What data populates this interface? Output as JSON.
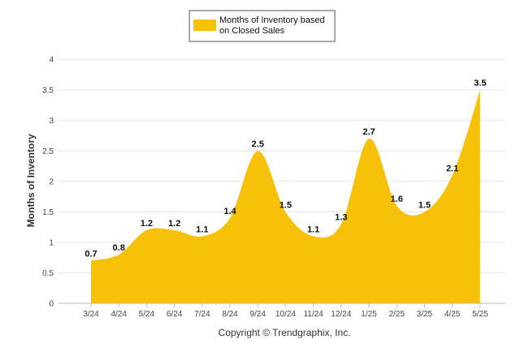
{
  "chart_data": {
    "type": "area",
    "categories": [
      "3/24",
      "4/24",
      "5/24",
      "6/24",
      "7/24",
      "8/24",
      "9/24",
      "10/24",
      "11/24",
      "12/24",
      "1/25",
      "2/25",
      "3/25",
      "4/25",
      "5/25"
    ],
    "series": [
      {
        "name": "Months of Inventory based on Closed Sales",
        "values": [
          0.7,
          0.8,
          1.2,
          1.2,
          1.1,
          1.4,
          2.5,
          1.5,
          1.1,
          1.3,
          2.7,
          1.6,
          1.5,
          2.1,
          3.5
        ],
        "data_labels": [
          "0.7",
          "0.8",
          "1.2",
          "1.2",
          "1.1",
          "1.4",
          "2.5",
          "1.5",
          "1.1",
          "1.3",
          "2.7",
          "1.6",
          "1.5",
          "2.1",
          "3.5"
        ]
      }
    ],
    "legend": {
      "line1": "Months of Inventory based",
      "line2": "on Closed Sales",
      "placement": "top-center"
    },
    "ylabel": "Months of Inventory",
    "xlabel": "",
    "ylim": [
      0,
      4
    ],
    "yticks": [
      "0",
      "0.5",
      "1",
      "1.5",
      "2",
      "2.5",
      "3",
      "3.5",
      "4"
    ],
    "grid": true,
    "colors": {
      "fill": "#F7C10A",
      "grid": "#E6E6E6"
    }
  },
  "footer": {
    "copyright": "Copyright © Trendgraphix, Inc."
  }
}
